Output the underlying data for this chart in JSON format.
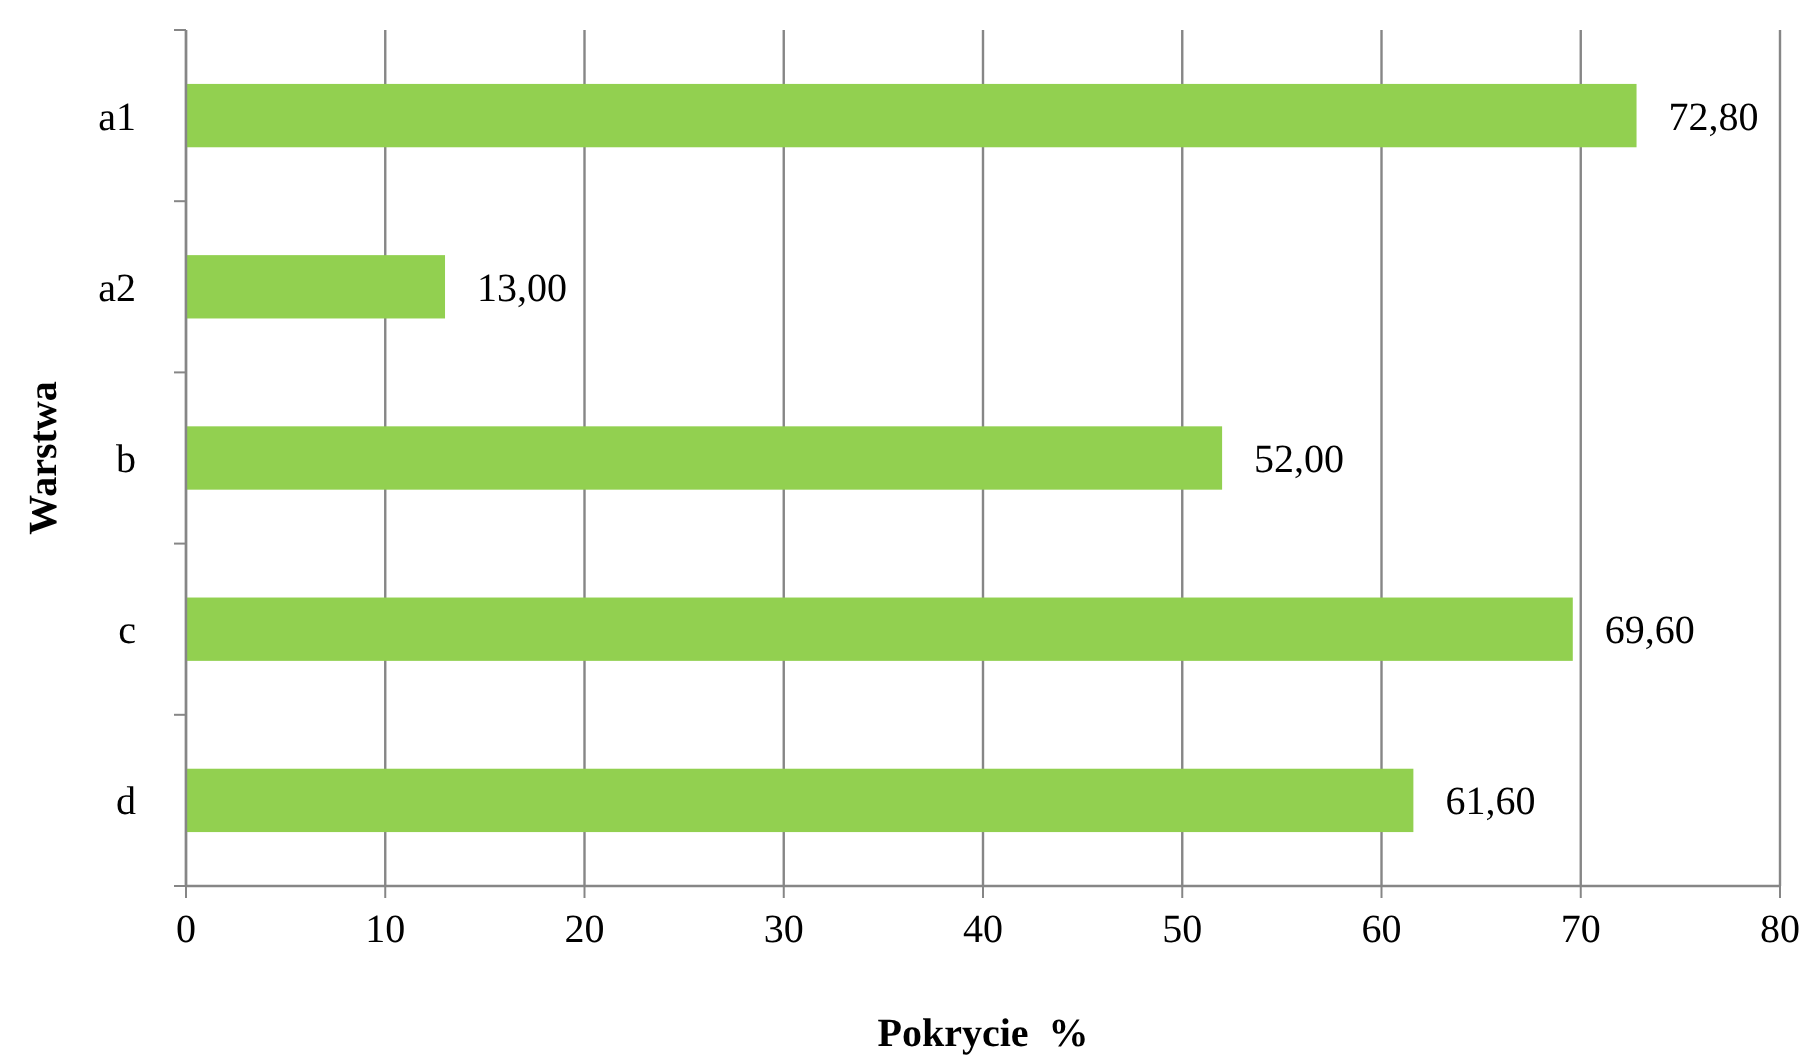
{
  "chart_data": {
    "type": "bar",
    "orientation": "horizontal",
    "xlabel": "Pokrycie  %",
    "ylabel": "Warstwa",
    "categories": [
      "a1",
      "a2",
      "b",
      "c",
      "d"
    ],
    "values": [
      72.8,
      13,
      52,
      69.6,
      61.6
    ],
    "value_labels": [
      "72,80",
      "13,00",
      "52,00",
      "69,60",
      "61,60"
    ],
    "color": "#92d050",
    "xlim": [
      0,
      80
    ],
    "xticks": [
      0,
      10,
      20,
      30,
      40,
      50,
      60,
      70,
      80
    ],
    "grid": "x"
  }
}
